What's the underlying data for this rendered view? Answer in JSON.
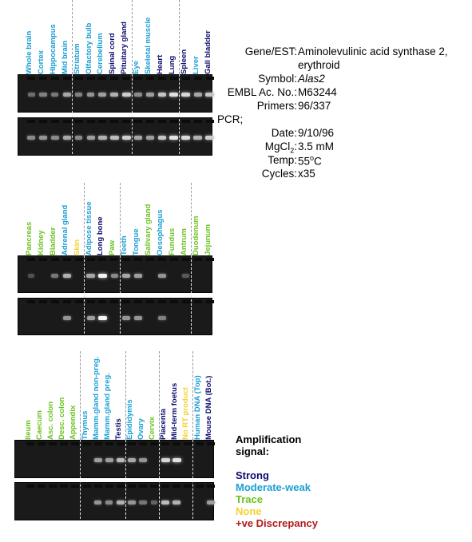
{
  "colors": {
    "Strong": "#0d0d6e",
    "Moderate-weak": "#1a9fd6",
    "Trace": "#6cc21f",
    "None": "#f2d32e",
    "+ve Discrepancy": "#b01a1a"
  },
  "info": {
    "gene_key": "Gene/EST:",
    "gene_value_line1": "Aminolevulinic acid synthase 2,",
    "gene_value_line2": "erythroid",
    "symbol_key": "Symbol:",
    "symbol_value": "Alas2",
    "embl_key": "EMBL Ac. No.:",
    "embl_value": "M63244",
    "primers_key": "Primers:",
    "primers_value": "96/337",
    "pcr_label": "PCR;",
    "date_key": "Date:",
    "date_value": "9/10/96",
    "mgcl2_key_main": "MgCl",
    "mgcl2_key_sub": "2",
    "mgcl2_key_colon": ":",
    "mgcl2_value": "3.5 mM",
    "temp_key": "Temp:",
    "temp_value_main": "55",
    "temp_value_sup": "o",
    "temp_value_unit": "C",
    "cycles_key": "Cycles:",
    "cycles_value": "x35"
  },
  "legend": {
    "title_line1": "Amplification",
    "title_line2": "signal:",
    "items": [
      {
        "label": "Strong",
        "level": "Strong"
      },
      {
        "label": "Moderate-weak",
        "level": "Moderate-weak"
      },
      {
        "label": "Trace",
        "level": "Trace"
      },
      {
        "label": "None",
        "level": "None"
      },
      {
        "label": "+ve Discrepancy",
        "level": "+ve Discrepancy"
      }
    ]
  },
  "panels": [
    {
      "lanes": [
        {
          "label": "Whole brain",
          "level": "Moderate-weak",
          "top_band": 0.25,
          "bottom_band": 0.4
        },
        {
          "label": "Cortex",
          "level": "Moderate-weak",
          "top_band": 0.35,
          "bottom_band": 0.45
        },
        {
          "label": "Hippocampus",
          "level": "Moderate-weak",
          "top_band": 0.3,
          "bottom_band": 0.4
        },
        {
          "label": "Mid brain",
          "level": "Moderate-weak",
          "top_band": 0.55,
          "bottom_band": 0.55
        },
        {
          "label": "Striatum",
          "level": "Moderate-weak",
          "top_band": 0.35,
          "bottom_band": 0.4
        },
        {
          "label": "Olfactory bulb",
          "level": "Moderate-weak",
          "top_band": 0.45,
          "bottom_band": 0.5
        },
        {
          "label": "Cerebellum",
          "level": "Moderate-weak",
          "top_band": 0.5,
          "bottom_band": 0.6
        },
        {
          "label": "Spinal cord",
          "level": "Strong",
          "top_band": 0.6,
          "bottom_band": 0.65
        },
        {
          "label": "Pituitary gland",
          "level": "Strong",
          "top_band": 0.75,
          "bottom_band": 0.75
        },
        {
          "label": "Eye",
          "level": "Moderate-weak",
          "top_band": 0.4,
          "bottom_band": 0.55
        },
        {
          "label": "Skeletal muscle",
          "level": "Moderate-weak",
          "top_band": 0.5,
          "bottom_band": 0.5
        },
        {
          "label": "Heart",
          "level": "Strong",
          "top_band": 0.7,
          "bottom_band": 0.7
        },
        {
          "label": "Lung",
          "level": "Strong",
          "top_band": 0.85,
          "bottom_band": 0.85
        },
        {
          "label": "Spleen",
          "level": "Strong",
          "top_band": 0.8,
          "bottom_band": 0.8
        },
        {
          "label": "Liver",
          "level": "Moderate-weak",
          "top_band": 0.55,
          "bottom_band": 0.6
        },
        {
          "label": "Gall bladder",
          "level": "Strong",
          "top_band": 0.7,
          "bottom_band": 0.75
        }
      ]
    },
    {
      "lanes": [
        {
          "label": "Pancreas",
          "level": "Trace",
          "top_band": 0.1,
          "bottom_band": 0.0
        },
        {
          "label": "Kidney",
          "level": "Trace",
          "top_band": 0.0,
          "bottom_band": 0.0
        },
        {
          "label": "Bladder",
          "level": "Trace",
          "top_band": 0.3,
          "bottom_band": 0.0
        },
        {
          "label": "Adrenal gland",
          "level": "Moderate-weak",
          "top_band": 0.6,
          "bottom_band": 0.45
        },
        {
          "label": "Skin",
          "level": "None",
          "top_band": 0.0,
          "bottom_band": 0.0
        },
        {
          "label": "Adipose tissue",
          "level": "Moderate-weak",
          "top_band": 0.55,
          "bottom_band": 0.5
        },
        {
          "label": "Long bone",
          "level": "Strong",
          "top_band": 0.95,
          "bottom_band": 0.95
        },
        {
          "label": "Paw",
          "level": "Trace",
          "top_band": 0.4,
          "bottom_band": 0.0
        },
        {
          "label": "Teeth",
          "level": "Moderate-weak",
          "top_band": 0.55,
          "bottom_band": 0.45
        },
        {
          "label": "Tongue",
          "level": "Moderate-weak",
          "top_band": 0.5,
          "bottom_band": 0.45
        },
        {
          "label": "Salivary gland",
          "level": "Trace",
          "top_band": 0.0,
          "bottom_band": 0.0
        },
        {
          "label": "Oesophagus",
          "level": "Moderate-weak",
          "top_band": 0.45,
          "bottom_band": 0.35
        },
        {
          "label": "Fundus",
          "level": "Trace",
          "top_band": 0.0,
          "bottom_band": 0.0
        },
        {
          "label": "Antrum",
          "level": "Trace",
          "top_band": 0.15,
          "bottom_band": 0.0
        },
        {
          "label": "Duodenum",
          "level": "Trace",
          "top_band": 0.0,
          "bottom_band": 0.0
        },
        {
          "label": "Jejunum",
          "level": "Trace",
          "top_band": 0.0,
          "bottom_band": 0.0
        }
      ]
    },
    {
      "lanes": [
        {
          "label": "Ileum",
          "level": "Trace",
          "top_band": 0.0,
          "bottom_band": 0.0
        },
        {
          "label": "Caecum",
          "level": "Trace",
          "top_band": 0.0,
          "bottom_band": 0.0
        },
        {
          "label": "Asc. colon",
          "level": "Trace",
          "top_band": 0.0,
          "bottom_band": 0.0
        },
        {
          "label": "Desc. colon",
          "level": "Trace",
          "top_band": 0.0,
          "bottom_band": 0.0
        },
        {
          "label": "Appendix",
          "level": "Trace",
          "top_band": 0.0,
          "bottom_band": 0.0
        },
        {
          "label": "Thymus",
          "level": "Moderate-weak",
          "top_band": 0.0,
          "bottom_band": 0.0
        },
        {
          "label": "Mamm.gland non-preg.",
          "level": "Moderate-weak",
          "top_band": 0.5,
          "bottom_band": 0.45
        },
        {
          "label": "Mamm.gland preg.",
          "level": "Moderate-weak",
          "top_band": 0.5,
          "bottom_band": 0.4
        },
        {
          "label": "Testis",
          "level": "Strong",
          "top_band": 0.65,
          "bottom_band": 0.6
        },
        {
          "label": "Epididymis",
          "level": "Moderate-weak",
          "top_band": 0.55,
          "bottom_band": 0.45
        },
        {
          "label": "Ovary",
          "level": "Moderate-weak",
          "top_band": 0.45,
          "bottom_band": 0.3
        },
        {
          "label": "Cervix",
          "level": "Trace",
          "top_band": 0.0,
          "bottom_band": 0.2
        },
        {
          "label": "Placenta",
          "level": "Strong",
          "top_band": 0.8,
          "bottom_band": 0.65
        },
        {
          "label": "Mid-term foetus",
          "level": "Strong",
          "top_band": 0.85,
          "bottom_band": 0.6
        },
        {
          "label": "No RT product",
          "level": "None",
          "top_band": 0.0,
          "bottom_band": 0.0
        },
        {
          "label": "Human DNA (Top)",
          "level": "Moderate-weak",
          "top_band": 0.0,
          "bottom_band": 0.0
        },
        {
          "label": "Mouse DNA (Bot.)",
          "level": "Strong",
          "top_band": 0.0,
          "bottom_band": 0.5
        }
      ]
    }
  ]
}
